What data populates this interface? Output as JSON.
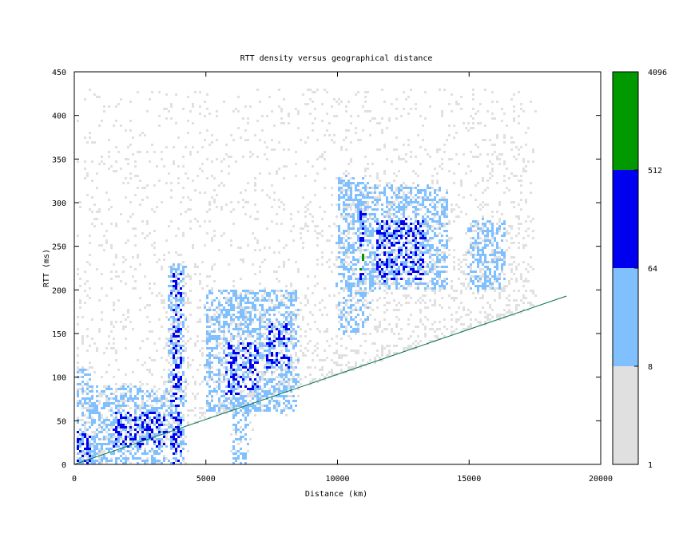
{
  "chart_data": {
    "type": "heatmap",
    "title": "RTT density versus geographical distance",
    "xlabel": "Distance (km)",
    "ylabel": "RTT (ms)",
    "xlim": [
      0,
      20000
    ],
    "ylim": [
      0,
      450
    ],
    "x_ticks": [
      "0",
      "5000",
      "10000",
      "15000",
      "20000"
    ],
    "y_ticks": [
      "0",
      "50",
      "100",
      "150",
      "200",
      "250",
      "300",
      "350",
      "400",
      "450"
    ],
    "colorbar": {
      "scale": "log",
      "ticks": [
        "1",
        "8",
        "64",
        "512",
        "4096"
      ],
      "bands": [
        {
          "from": 1,
          "to": 8,
          "color": "#e0e0e0"
        },
        {
          "from": 8,
          "to": 64,
          "color": "#80c0ff"
        },
        {
          "from": 64,
          "to": 512,
          "color": "#0000f0"
        },
        {
          "from": 512,
          "to": 4096,
          "color": "#009900"
        }
      ]
    },
    "reference_line": {
      "color": "#007050",
      "points": [
        [
          0,
          0
        ],
        [
          18700,
          193
        ]
      ]
    },
    "density_regions": [
      {
        "x": [
          0,
          600
        ],
        "y": [
          0,
          110
        ],
        "level": 2
      },
      {
        "x": [
          0,
          600
        ],
        "y": [
          0,
          40
        ],
        "level": 3
      },
      {
        "x": [
          600,
          3500
        ],
        "y": [
          0,
          90
        ],
        "level": 2
      },
      {
        "x": [
          1500,
          3500
        ],
        "y": [
          20,
          60
        ],
        "level": 3
      },
      {
        "x": [
          3600,
          4200
        ],
        "y": [
          0,
          230
        ],
        "level": 2
      },
      {
        "x": [
          3700,
          4100
        ],
        "y": [
          0,
          220
        ],
        "level": 3
      },
      {
        "x": [
          5000,
          8500
        ],
        "y": [
          60,
          200
        ],
        "level": 2
      },
      {
        "x": [
          5800,
          7000
        ],
        "y": [
          80,
          140
        ],
        "level": 3
      },
      {
        "x": [
          7300,
          8200
        ],
        "y": [
          110,
          160
        ],
        "level": 3
      },
      {
        "x": [
          6000,
          6600
        ],
        "y": [
          0,
          80
        ],
        "level": 2
      },
      {
        "x": [
          10000,
          11200
        ],
        "y": [
          150,
          330
        ],
        "level": 2
      },
      {
        "x": [
          10850,
          11050
        ],
        "y": [
          210,
          300
        ],
        "level": 3
      },
      {
        "x": [
          10900,
          11000
        ],
        "y": [
          220,
          250
        ],
        "level": 4
      },
      {
        "x": [
          11200,
          14200
        ],
        "y": [
          200,
          320
        ],
        "level": 2
      },
      {
        "x": [
          11500,
          13300
        ],
        "y": [
          210,
          280
        ],
        "level": 3
      },
      {
        "x": [
          15000,
          16400
        ],
        "y": [
          200,
          280
        ],
        "level": 2
      }
    ]
  }
}
